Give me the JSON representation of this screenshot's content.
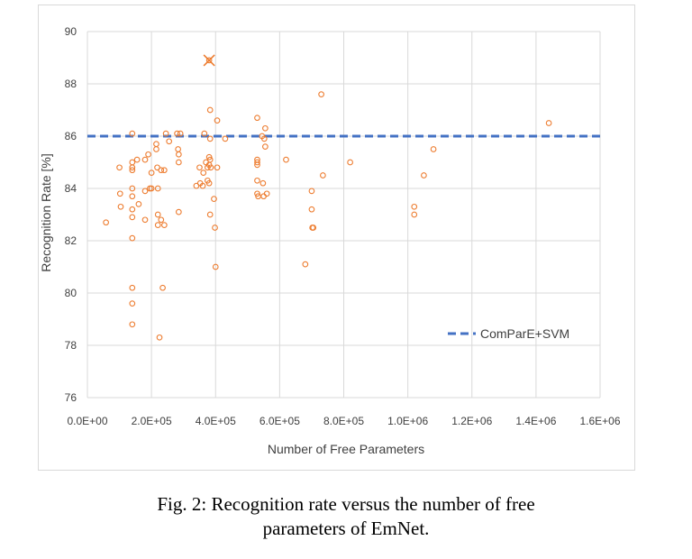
{
  "chart_data": {
    "type": "scatter",
    "title": "",
    "xlabel": "Number of Free Parameters",
    "ylabel": "Recognition Rate [%]",
    "xlim": [
      0,
      1600000
    ],
    "ylim": [
      76,
      90
    ],
    "x_ticks": [
      0,
      200000,
      400000,
      600000,
      800000,
      1000000,
      1200000,
      1400000,
      1600000
    ],
    "x_tick_labels": [
      "0.0E+00",
      "2.0E+05",
      "4.0E+05",
      "6.0E+05",
      "8.0E+05",
      "1.0E+06",
      "1.2E+06",
      "1.4E+06",
      "1.6E+06"
    ],
    "y_ticks": [
      76,
      78,
      80,
      82,
      84,
      86,
      88,
      90
    ],
    "y_tick_labels": [
      "76",
      "78",
      "80",
      "82",
      "84",
      "86",
      "88",
      "90"
    ],
    "grid": true,
    "legend_position": "bottom-right",
    "colors": {
      "points": "#ed7d31",
      "baseline": "#4472c4",
      "grid": "#d9d9d9"
    },
    "series": [
      {
        "kind": "scatter",
        "marker": "circle",
        "points": [
          [
            58000,
            82.7
          ],
          [
            100000,
            84.8
          ],
          [
            102000,
            83.8
          ],
          [
            104000,
            83.3
          ],
          [
            140000,
            86.1
          ],
          [
            140000,
            85.0
          ],
          [
            140000,
            84.8
          ],
          [
            140000,
            84.7
          ],
          [
            140000,
            84.0
          ],
          [
            140000,
            83.7
          ],
          [
            140000,
            83.2
          ],
          [
            140000,
            82.9
          ],
          [
            140000,
            82.1
          ],
          [
            140000,
            80.2
          ],
          [
            140000,
            79.6
          ],
          [
            140000,
            78.8
          ],
          [
            155000,
            85.1
          ],
          [
            160000,
            83.4
          ],
          [
            180000,
            85.1
          ],
          [
            180000,
            83.9
          ],
          [
            180000,
            82.8
          ],
          [
            190000,
            85.3
          ],
          [
            195000,
            84.0
          ],
          [
            200000,
            84.6
          ],
          [
            200000,
            84.0
          ],
          [
            215000,
            85.7
          ],
          [
            215000,
            85.5
          ],
          [
            218000,
            84.8
          ],
          [
            220000,
            84.0
          ],
          [
            220000,
            83.0
          ],
          [
            220000,
            82.6
          ],
          [
            225000,
            78.3
          ],
          [
            230000,
            84.7
          ],
          [
            230000,
            82.8
          ],
          [
            235000,
            80.2
          ],
          [
            240000,
            84.7
          ],
          [
            240000,
            82.6
          ],
          [
            245000,
            86.1
          ],
          [
            255000,
            85.8
          ],
          [
            280000,
            86.1
          ],
          [
            283000,
            85.5
          ],
          [
            285000,
            85.3
          ],
          [
            285000,
            85.0
          ],
          [
            285000,
            83.1
          ],
          [
            290000,
            86.1
          ],
          [
            340000,
            84.1
          ],
          [
            350000,
            84.8
          ],
          [
            352000,
            84.2
          ],
          [
            360000,
            84.1
          ],
          [
            362000,
            84.6
          ],
          [
            365000,
            86.1
          ],
          [
            370000,
            85.0
          ],
          [
            375000,
            84.8
          ],
          [
            375000,
            84.3
          ],
          [
            380000,
            85.2
          ],
          [
            380000,
            84.9
          ],
          [
            380000,
            84.2
          ],
          [
            383000,
            87.0
          ],
          [
            383000,
            85.9
          ],
          [
            383000,
            85.1
          ],
          [
            383000,
            83.0
          ],
          [
            385000,
            84.8
          ],
          [
            395000,
            83.6
          ],
          [
            398000,
            82.5
          ],
          [
            400000,
            81.0
          ],
          [
            405000,
            86.6
          ],
          [
            405000,
            84.8
          ],
          [
            430000,
            85.9
          ],
          [
            530000,
            86.7
          ],
          [
            530000,
            85.1
          ],
          [
            530000,
            85.0
          ],
          [
            530000,
            84.9
          ],
          [
            530000,
            84.3
          ],
          [
            530000,
            83.8
          ],
          [
            533000,
            83.7
          ],
          [
            545000,
            86.0
          ],
          [
            548000,
            84.2
          ],
          [
            550000,
            83.7
          ],
          [
            552000,
            85.9
          ],
          [
            555000,
            85.6
          ],
          [
            555000,
            86.3
          ],
          [
            560000,
            83.8
          ],
          [
            620000,
            85.1
          ],
          [
            680000,
            81.1
          ],
          [
            700000,
            83.9
          ],
          [
            700000,
            83.2
          ],
          [
            702000,
            82.5
          ],
          [
            705000,
            82.5
          ],
          [
            730000,
            87.6
          ],
          [
            735000,
            84.5
          ],
          [
            820000,
            85.0
          ],
          [
            1020000,
            83.3
          ],
          [
            1020000,
            83.0
          ],
          [
            1050000,
            84.5
          ],
          [
            1080000,
            85.5
          ],
          [
            1440000,
            86.5
          ]
        ]
      },
      {
        "kind": "highlight",
        "marker": "x",
        "points": [
          [
            380000,
            88.9
          ]
        ]
      },
      {
        "kind": "hline",
        "name": "ComParE+SVM",
        "y": 86.0,
        "style": "dashed"
      }
    ]
  },
  "caption": {
    "line1": "Fig. 2: Recognition rate versus the number of free",
    "line2": "parameters of EmNet."
  }
}
